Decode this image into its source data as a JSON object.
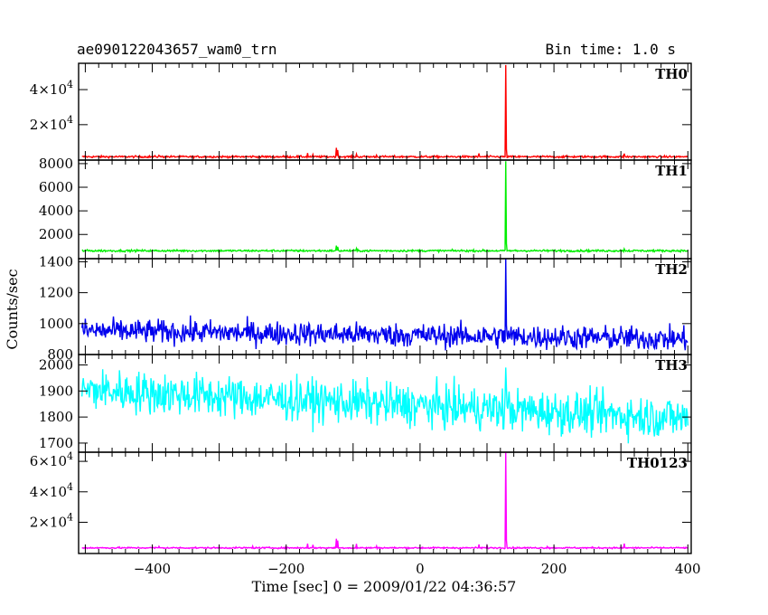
{
  "header": {
    "title": "ae090122043657_wam0_trn",
    "bin_time": "Bin time: 1.0 s"
  },
  "chart_data": {
    "type": "line",
    "xlabel": "Time [sec] 0 = 2009/01/22 04:36:57",
    "ylabel": "Counts/sec",
    "xlim": [
      -510,
      405
    ],
    "x_ticks": [
      -400,
      -200,
      0,
      200,
      400
    ],
    "x_tick_labels": [
      "−400",
      "−200",
      "0",
      "200",
      "400"
    ],
    "burst_time": 128,
    "panels": [
      {
        "name": "TH0",
        "color": "#ff0000",
        "ylim": [
          -200,
          55000
        ],
        "yticks": [
          20000,
          40000
        ],
        "ytick_base": [
          "2×10",
          "4×10"
        ],
        "ytick_exp": [
          "4",
          "4"
        ],
        "baseline": 1700,
        "noise": 400,
        "trend": 0,
        "peak": 54000,
        "spikes": [
          [
            -390,
            2500
          ],
          [
            -250,
            2200
          ],
          [
            -168,
            3800
          ],
          [
            -160,
            3000
          ],
          [
            -125,
            6800
          ],
          [
            -123,
            5500
          ],
          [
            -95,
            3200
          ],
          [
            -65,
            2600
          ],
          [
            88,
            3600
          ],
          [
            100,
            2900
          ],
          [
            190,
            2200
          ],
          [
            305,
            3500
          ]
        ]
      },
      {
        "name": "TH1",
        "color": "#00ee00",
        "ylim": [
          -50,
          8300
        ],
        "yticks": [
          2000,
          4000,
          6000,
          8000
        ],
        "ytick_labels": [
          "2000",
          "4000",
          "6000",
          "8000"
        ],
        "baseline": 620,
        "noise": 60,
        "trend": 0,
        "peak": 8200,
        "spikes": [
          [
            -125,
            1050
          ],
          [
            -123,
            950
          ],
          [
            -95,
            820
          ],
          [
            305,
            780
          ]
        ]
      },
      {
        "name": "TH2",
        "color": "#0000ee",
        "ylim": [
          800,
          1420
        ],
        "yticks": [
          800,
          1000,
          1200,
          1400
        ],
        "ytick_labels": [
          "800",
          "1000",
          "1200",
          "1400"
        ],
        "baseline": 955,
        "noise": 55,
        "trend": -55,
        "peak": 1420,
        "spikes": []
      },
      {
        "name": "TH3",
        "color": "#00ffff",
        "ylim": [
          1665,
          2040
        ],
        "yticks": [
          1700,
          1800,
          1900,
          2000
        ],
        "ytick_labels": [
          "1700",
          "1800",
          "1900",
          "2000"
        ],
        "baseline": 1905,
        "noise": 58,
        "trend": -110,
        "peak": 1990,
        "spikes": []
      },
      {
        "name": "TH0123",
        "color": "#ff00ff",
        "ylim": [
          -500,
          66000
        ],
        "yticks": [
          20000,
          40000,
          60000
        ],
        "ytick_base": [
          "2×10",
          "4×10",
          "6×10"
        ],
        "ytick_exp": [
          "4",
          "4",
          "4"
        ],
        "baseline": 3200,
        "noise": 350,
        "trend": 0,
        "peak": 66000,
        "spikes": [
          [
            -390,
            4200
          ],
          [
            -250,
            4300
          ],
          [
            -168,
            6000
          ],
          [
            -160,
            5200
          ],
          [
            -125,
            9200
          ],
          [
            -123,
            8000
          ],
          [
            -95,
            5800
          ],
          [
            -65,
            4400
          ],
          [
            88,
            5400
          ],
          [
            100,
            4700
          ],
          [
            190,
            4100
          ],
          [
            305,
            6000
          ]
        ]
      }
    ]
  }
}
